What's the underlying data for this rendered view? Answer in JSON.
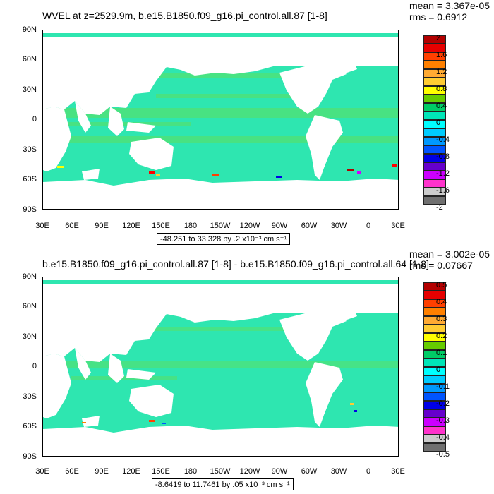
{
  "panels": [
    {
      "title": "WVEL at z=2529.9m, b.e15.B1850.f09_g16.pi_control.all.87 [1-8]",
      "mean_text": "mean = 3.367e-05",
      "rms_text": "rms = 0.6912",
      "range_text": "-48.251 to 33.328 by .2 x10⁻³ cm s⁻¹",
      "colorbar_labels": [
        "2",
        "1.6",
        "1.2",
        "0.8",
        "0.4",
        "0",
        "-0.4",
        "-0.8",
        "-1.2",
        "-1.6",
        "-2"
      ]
    },
    {
      "title": "b.e15.B1850.f09_g16.pi_control.all.87 [1-8] - b.e15.B1850.f09_g16.pi_control.all.64 [1-8]",
      "mean_text": "mean = 3.002e-05",
      "rms_text": "rms = 0.07667",
      "range_text": "-8.6419 to 11.7461 by .05 x10⁻³ cm s⁻¹",
      "colorbar_labels": [
        "0.5",
        "0.4",
        "0.3",
        "0.2",
        "0.1",
        "0",
        "-0.1",
        "-0.2",
        "-0.3",
        "-0.4",
        "-0.5"
      ]
    }
  ],
  "lat_labels": [
    "90N",
    "60N",
    "30N",
    "0",
    "30S",
    "60S",
    "90S"
  ],
  "lon_labels": [
    "30E",
    "60E",
    "90E",
    "120E",
    "150E",
    "180",
    "150W",
    "120W",
    "90W",
    "60W",
    "30W",
    "0",
    "30E"
  ],
  "colorbar_colors": [
    "#b30000",
    "#e60000",
    "#ff4000",
    "#ff8000",
    "#ffaa33",
    "#ffcc33",
    "#ffff00",
    "#66cc00",
    "#00cc66",
    "#00e6b8",
    "#00ffff",
    "#00ccff",
    "#0099ff",
    "#0055ff",
    "#0000e6",
    "#6600cc",
    "#cc00ff",
    "#ff33cc",
    "#cccccc",
    "#707070"
  ],
  "map_colors": {
    "ocean": "#2ee6b0",
    "ocean_alt": "#5ee05e",
    "land": "#ffffff"
  }
}
